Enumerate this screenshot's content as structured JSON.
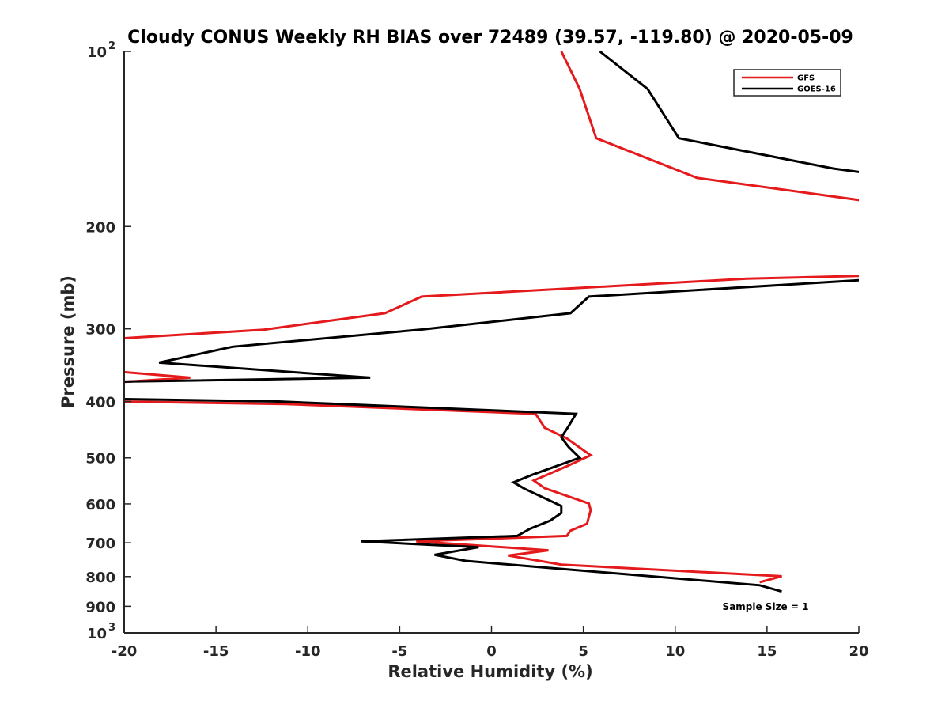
{
  "chart_data": {
    "type": "line",
    "title": "Cloudy CONUS Weekly RH BIAS over 72489 (39.57, -119.80) @ 2020-05-09",
    "xlabel": "Relative Humidity (%)",
    "ylabel": "Pressure (mb)",
    "xlim": [
      -20,
      20
    ],
    "ylim": [
      1000,
      100
    ],
    "yscale": "log",
    "y_reversed": true,
    "grid": false,
    "legend_position": "top-right",
    "annotation": "Sample Size = 1",
    "x_ticks": [
      {
        "v": -20,
        "label": "-20"
      },
      {
        "v": -15,
        "label": "-15"
      },
      {
        "v": -10,
        "label": "-10"
      },
      {
        "v": -5,
        "label": "-5"
      },
      {
        "v": 0,
        "label": "0"
      },
      {
        "v": 5,
        "label": "5"
      },
      {
        "v": 10,
        "label": "10"
      },
      {
        "v": 15,
        "label": "15"
      },
      {
        "v": 20,
        "label": "20"
      }
    ],
    "y_ticks": [
      {
        "v": 100,
        "label": "10",
        "sup": "2"
      },
      {
        "v": 200,
        "label": "200"
      },
      {
        "v": 300,
        "label": "300"
      },
      {
        "v": 400,
        "label": "400"
      },
      {
        "v": 500,
        "label": "500"
      },
      {
        "v": 600,
        "label": "600"
      },
      {
        "v": 700,
        "label": "700"
      },
      {
        "v": 800,
        "label": "800"
      },
      {
        "v": 900,
        "label": "900"
      },
      {
        "v": 1000,
        "label": "10",
        "sup": "3"
      }
    ],
    "series": [
      {
        "name": "GFS",
        "color": "#e41a1c",
        "points": [
          [
            3.8,
            100
          ],
          [
            4.8,
            116
          ],
          [
            5.7,
            141
          ],
          [
            11.2,
            165
          ],
          [
            20.5,
            181
          ],
          [
            20.5,
            243
          ],
          [
            13.9,
            246
          ],
          [
            -3.8,
            264
          ],
          [
            -5.8,
            282
          ],
          [
            -12.4,
            301
          ],
          [
            -20.5,
            312
          ],
          [
            -20.5,
            355
          ],
          [
            -16.4,
            364
          ],
          [
            -20.5,
            371
          ],
          [
            -20.5,
            400
          ],
          [
            -11.2,
            404
          ],
          [
            2.4,
            420
          ],
          [
            2.9,
            444
          ],
          [
            4.1,
            463
          ],
          [
            5.4,
            495
          ],
          [
            4.1,
            517
          ],
          [
            2.3,
            547
          ],
          [
            2.9,
            564
          ],
          [
            5.3,
            599
          ],
          [
            5.4,
            615
          ],
          [
            5.2,
            649
          ],
          [
            4.3,
            667
          ],
          [
            4.1,
            681
          ],
          [
            -4.1,
            696
          ],
          [
            3.1,
            721
          ],
          [
            0.9,
            736
          ],
          [
            3.8,
            763
          ],
          [
            15.8,
            799
          ],
          [
            14.6,
            818
          ]
        ]
      },
      {
        "name": "GOES-16",
        "color": "#000000",
        "points": [
          [
            5.9,
            100
          ],
          [
            8.5,
            116
          ],
          [
            10.2,
            141
          ],
          [
            18.6,
            159
          ],
          [
            20.5,
            162
          ],
          [
            20.5,
            247
          ],
          [
            5.3,
            264
          ],
          [
            4.3,
            282
          ],
          [
            -3.9,
            301
          ],
          [
            -14.1,
            322
          ],
          [
            -18.1,
            343
          ],
          [
            -6.6,
            364
          ],
          [
            -20.5,
            370
          ],
          [
            -20.5,
            396
          ],
          [
            -11.6,
            400
          ],
          [
            4.6,
            420
          ],
          [
            4.2,
            441
          ],
          [
            3.8,
            461
          ],
          [
            4.2,
            479
          ],
          [
            4.8,
            500
          ],
          [
            2.2,
            535
          ],
          [
            1.2,
            551
          ],
          [
            1.8,
            565
          ],
          [
            3.8,
            605
          ],
          [
            3.8,
            622
          ],
          [
            3.2,
            641
          ],
          [
            2.1,
            662
          ],
          [
            1.4,
            681
          ],
          [
            -7.1,
            696
          ],
          [
            -0.7,
            712
          ],
          [
            -3.1,
            734
          ],
          [
            -1.4,
            752
          ],
          [
            2.7,
            771
          ],
          [
            14.6,
            828
          ],
          [
            15.8,
            849
          ]
        ]
      }
    ]
  }
}
